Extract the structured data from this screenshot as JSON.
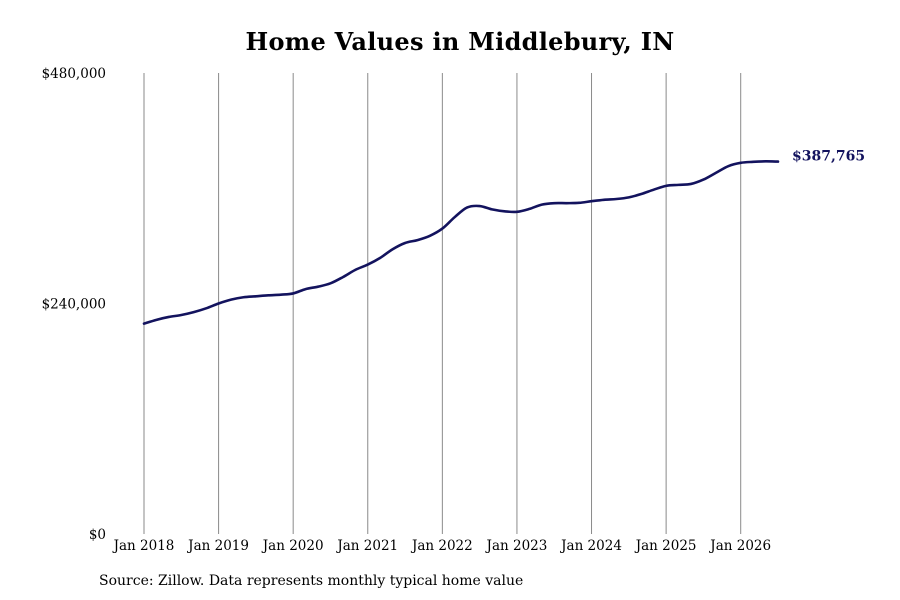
{
  "title": "Home Values in Middlebury, IN",
  "source": "Source: Zillow. Data represents monthly typical home value",
  "colors": {
    "line": "#13135e",
    "grid": "#8a8a8a",
    "end_label": "#13135e"
  },
  "chart_data": {
    "type": "line",
    "title": "Home Values in Middlebury, IN",
    "xlabel": "",
    "ylabel": "",
    "ylim": [
      0,
      480000
    ],
    "xlim": [
      "2018-01",
      "2026-07"
    ],
    "grid": {
      "vertical": true,
      "horizontal": false
    },
    "y_ticks": [
      {
        "value": 0,
        "label": "$0"
      },
      {
        "value": 240000,
        "label": "$240,000"
      },
      {
        "value": 480000,
        "label": "$480,000"
      }
    ],
    "x_ticks": [
      {
        "value": "2018-01",
        "label": "Jan 2018"
      },
      {
        "value": "2019-01",
        "label": "Jan 2019"
      },
      {
        "value": "2020-01",
        "label": "Jan 2020"
      },
      {
        "value": "2021-01",
        "label": "Jan 2021"
      },
      {
        "value": "2022-01",
        "label": "Jan 2022"
      },
      {
        "value": "2023-01",
        "label": "Jan 2023"
      },
      {
        "value": "2024-01",
        "label": "Jan 2024"
      },
      {
        "value": "2025-01",
        "label": "Jan 2025"
      },
      {
        "value": "2026-01",
        "label": "Jan 2026"
      }
    ],
    "end_label": "$387,765",
    "series": [
      {
        "x": [
          "2018-01",
          "2018-03",
          "2018-05",
          "2018-07",
          "2018-09",
          "2018-11",
          "2019-01",
          "2019-03",
          "2019-05",
          "2019-07",
          "2019-09",
          "2019-11",
          "2020-01",
          "2020-03",
          "2020-05",
          "2020-07",
          "2020-09",
          "2020-11",
          "2021-01",
          "2021-03",
          "2021-05",
          "2021-07",
          "2021-09",
          "2021-11",
          "2022-01",
          "2022-03",
          "2022-05",
          "2022-07",
          "2022-09",
          "2022-11",
          "2023-01",
          "2023-03",
          "2023-05",
          "2023-07",
          "2023-09",
          "2023-11",
          "2024-01",
          "2024-03",
          "2024-05",
          "2024-07",
          "2024-09",
          "2024-11",
          "2025-01",
          "2025-03",
          "2025-05",
          "2025-07",
          "2025-09",
          "2025-11",
          "2026-01",
          "2026-03",
          "2026-05",
          "2026-07"
        ],
        "y": [
          219000,
          223000,
          226000,
          228000,
          231000,
          235000,
          240000,
          244000,
          246500,
          247500,
          248500,
          249200,
          250500,
          255000,
          257500,
          261000,
          267500,
          275000,
          280500,
          287500,
          296500,
          303000,
          306000,
          310500,
          318000,
          330000,
          340000,
          341500,
          338000,
          336000,
          335500,
          338500,
          343000,
          344500,
          344500,
          344800,
          346500,
          348000,
          348800,
          350500,
          354000,
          358500,
          362500,
          363500,
          364500,
          369000,
          376000,
          383000,
          386500,
          387500,
          388000,
          387765
        ]
      }
    ]
  }
}
